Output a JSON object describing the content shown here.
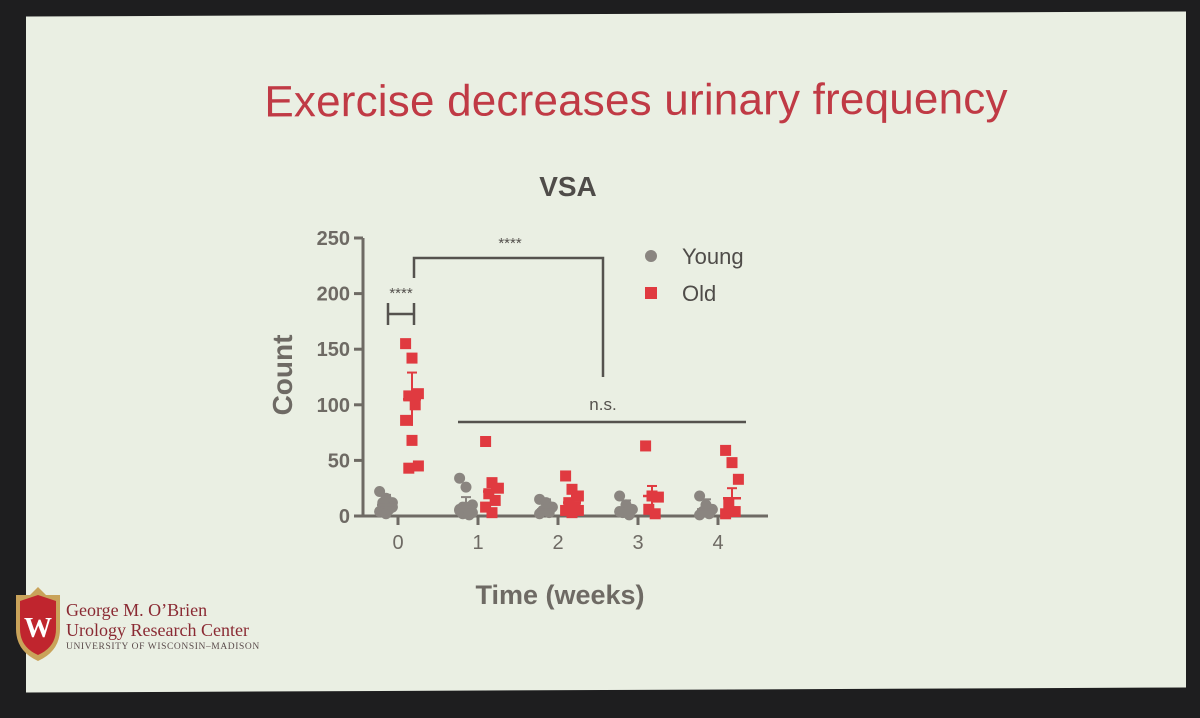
{
  "slide": {
    "title": "Exercise decreases urinary frequency",
    "org": {
      "line1": "George M. O’Brien",
      "line2": "Urology Research Center",
      "line3": "UNIVERSITY OF WISCONSIN–MADISON",
      "logo_icon": "uw-crest-icon",
      "logo_letter": "W"
    }
  },
  "colors": {
    "young": "#8a8580",
    "old": "#e03a40",
    "axis": "#6e6a64",
    "title": "#c03a45"
  },
  "chart_data": {
    "type": "scatter",
    "title": "VSA",
    "xlabel": "Time (weeks)",
    "ylabel": "Count",
    "ylim": [
      0,
      250
    ],
    "yticks": [
      0,
      50,
      100,
      150,
      200,
      250
    ],
    "categories": [
      "0",
      "1",
      "2",
      "3",
      "4"
    ],
    "legend": {
      "placement": "top-right"
    },
    "series": [
      {
        "name": "Young",
        "marker": "circle",
        "points": [
          [
            [
              0,
              22
            ],
            [
              0,
              16
            ],
            [
              0,
              12
            ],
            [
              0,
              9
            ],
            [
              0,
              6
            ],
            [
              0,
              4
            ],
            [
              0,
              2
            ],
            [
              0,
              8
            ],
            [
              0,
              12
            ]
          ],
          [
            [
              0,
              34
            ],
            [
              0,
              26
            ],
            [
              0,
              10
            ],
            [
              0,
              8
            ],
            [
              0,
              6
            ],
            [
              0,
              5
            ],
            [
              0,
              4
            ],
            [
              0,
              3
            ],
            [
              0,
              2
            ],
            [
              0,
              1
            ],
            [
              0,
              6
            ],
            [
              0,
              8
            ]
          ],
          [
            [
              0,
              15
            ],
            [
              0,
              12
            ],
            [
              0,
              8
            ],
            [
              0,
              5
            ],
            [
              0,
              3
            ],
            [
              0,
              2
            ],
            [
              0,
              6
            ]
          ],
          [
            [
              0,
              18
            ],
            [
              0,
              10
            ],
            [
              0,
              6
            ],
            [
              0,
              3
            ],
            [
              0,
              1
            ],
            [
              0,
              4
            ]
          ],
          [
            [
              0,
              18
            ],
            [
              0,
              10
            ],
            [
              0,
              6
            ],
            [
              0,
              4
            ],
            [
              0,
              2
            ],
            [
              0,
              1
            ]
          ]
        ],
        "means": [
          10,
          8,
          6,
          5,
          6
        ]
      },
      {
        "name": "Old",
        "marker": "square",
        "points": [
          [
            [
              0,
              155
            ],
            [
              0,
              142
            ],
            [
              0,
              110
            ],
            [
              0,
              108
            ],
            [
              0,
              100
            ],
            [
              0,
              86
            ],
            [
              0,
              68
            ],
            [
              0,
              45
            ],
            [
              0,
              43
            ]
          ],
          [
            [
              0,
              67
            ],
            [
              0,
              30
            ],
            [
              0,
              25
            ],
            [
              0,
              20
            ],
            [
              0,
              14
            ],
            [
              0,
              8
            ],
            [
              0,
              3
            ]
          ],
          [
            [
              0,
              36
            ],
            [
              0,
              24
            ],
            [
              0,
              18
            ],
            [
              0,
              12
            ],
            [
              0,
              8
            ],
            [
              0,
              5
            ],
            [
              0,
              3
            ],
            [
              0,
              5
            ]
          ],
          [
            [
              0,
              63
            ],
            [
              0,
              18
            ],
            [
              0,
              17
            ],
            [
              0,
              6
            ],
            [
              0,
              2
            ]
          ],
          [
            [
              0,
              59
            ],
            [
              0,
              48
            ],
            [
              0,
              33
            ],
            [
              0,
              10
            ],
            [
              0,
              4
            ],
            [
              0,
              2
            ]
          ]
        ],
        "means": [
          105,
          22,
          12,
          18,
          16
        ]
      }
    ],
    "annotations": [
      {
        "text": "****",
        "type": "bracket-within-week-0"
      },
      {
        "text": "****",
        "type": "bracket-week0-vs-later"
      },
      {
        "text": "n.s.",
        "type": "line-weeks-1-to-4"
      }
    ]
  }
}
